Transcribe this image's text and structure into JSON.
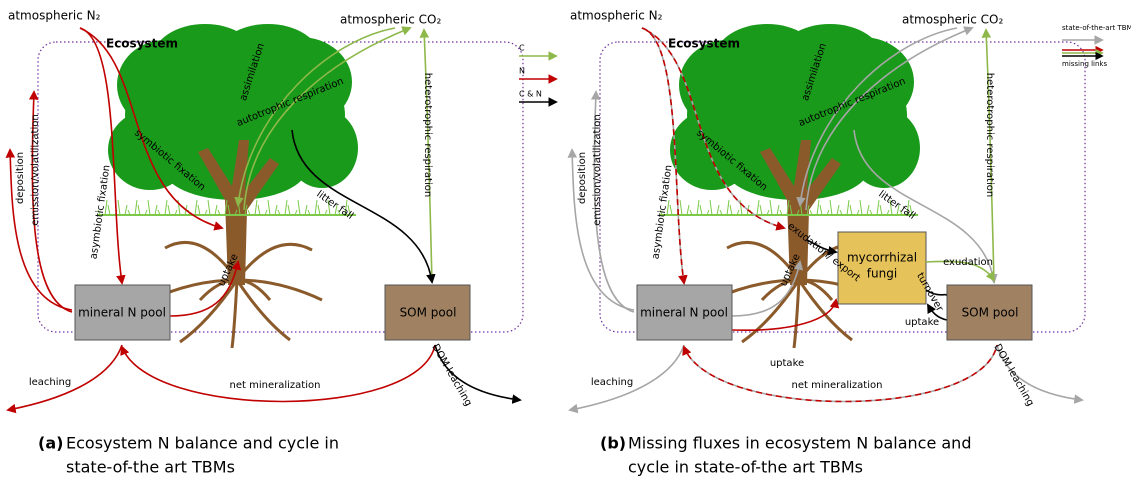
{
  "panels": [
    {
      "label": "(a)",
      "caption": [
        "Ecosystem N balance and cycle in",
        "state-of-the art TBMs"
      ],
      "source_n2": "atmospheric N₂",
      "source_co2": "atmospheric CO₂",
      "ecosystem": "Ecosystem",
      "pools": [
        "mineral N pool",
        "SOM pool"
      ],
      "fluxes": [
        "assimilation",
        "autotrophic respiration",
        "heterotrophic respiration",
        "symbiotic fixation",
        "litter fall",
        "deposition",
        "emission/volatilization",
        "asymbiotic fixation",
        "uptake",
        "leaching",
        "net mineralization",
        "DOM leaching"
      ],
      "legend": [
        "C",
        "N",
        "C & N"
      ]
    },
    {
      "label": "(b)",
      "caption": [
        "Missing fluxes in ecosystem N balance and",
        "cycle in state-of-the art TBMs"
      ],
      "source_n2": "atmospheric N₂",
      "source_co2": "atmospheric CO₂",
      "ecosystem": "Ecosystem",
      "pools": [
        "mineral N pool",
        "SOM pool"
      ],
      "fungi": [
        "mycorrhizal",
        "fungi"
      ],
      "fluxes": [
        "assimilation",
        "autotrophic respiration",
        "heterotrophic respiration",
        "symbiotic fixation",
        "litter fall",
        "deposition",
        "emission/volatilization",
        "asymbiotic fixation",
        "uptake",
        "leaching",
        "net mineralization",
        "DOM leaching",
        "exudation/ export",
        "exudation",
        "turnover",
        "uptake",
        "uptake"
      ],
      "legend": [
        "state-of-the-art TBMs",
        "missing links"
      ]
    }
  ]
}
